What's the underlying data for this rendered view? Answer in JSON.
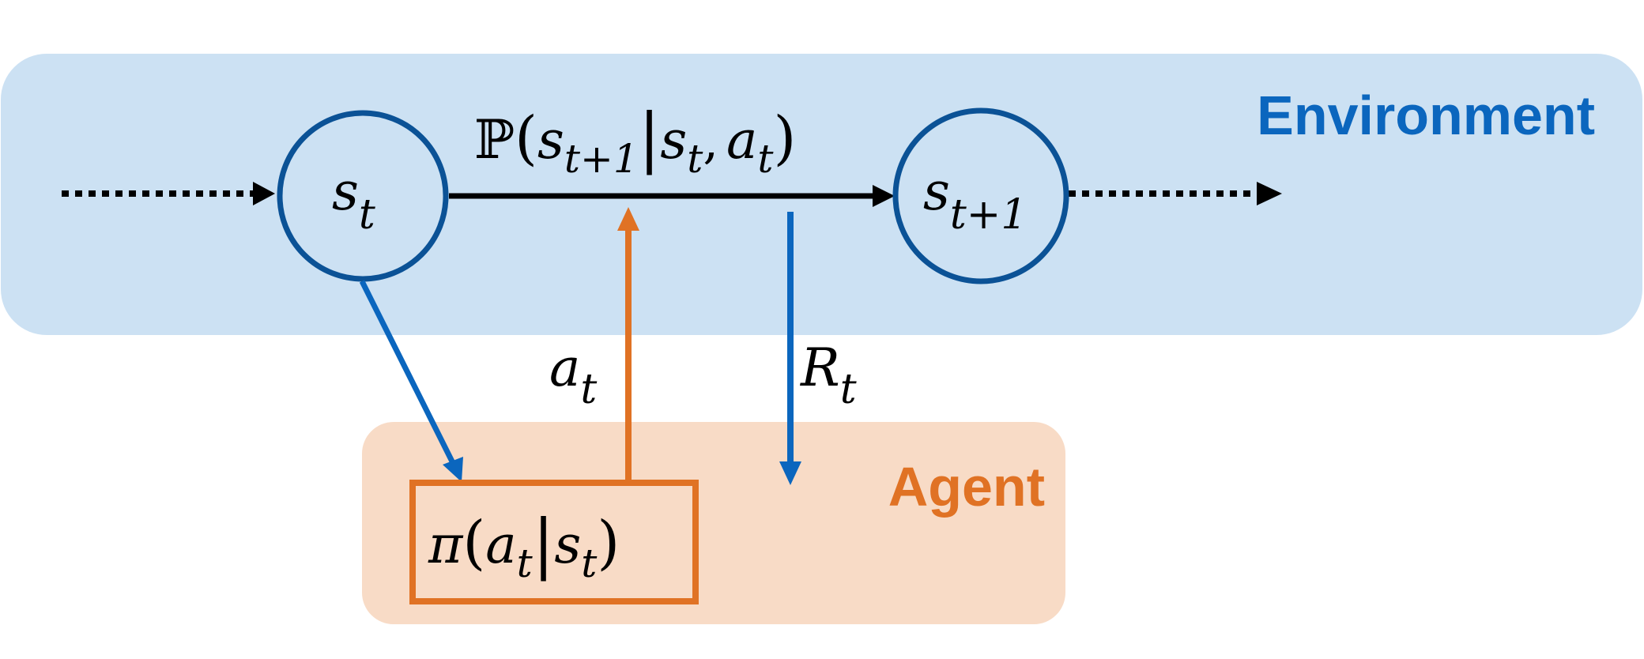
{
  "environment": {
    "label": "Environment",
    "color": "#0b66be",
    "fill": "#cce1f3"
  },
  "agent": {
    "label": "Agent",
    "color": "#e07224",
    "fill": "#f8dbc6"
  },
  "state_current": {
    "symbol": "s",
    "subscript": "t"
  },
  "state_next": {
    "symbol": "s",
    "subscript": "t+1"
  },
  "transition": {
    "operator": "ℙ",
    "open": "(",
    "s_next": "s",
    "s_next_sub": "t+1",
    "bar": "|",
    "s": "s",
    "s_sub": "t",
    "comma": ",",
    "a": "a",
    "a_sub": "t",
    "close": ")"
  },
  "action": {
    "symbol": "a",
    "subscript": "t"
  },
  "reward": {
    "symbol": "R",
    "subscript": "t"
  },
  "policy": {
    "pi": "π",
    "open": "(",
    "a": "a",
    "a_sub": "t",
    "bar": "|",
    "s": "s",
    "s_sub": "t",
    "close": ")"
  },
  "colors": {
    "node_stroke": "#0b5296",
    "blue_arrow": "#0b66be",
    "orange_arrow": "#e07224",
    "black": "#000000"
  }
}
